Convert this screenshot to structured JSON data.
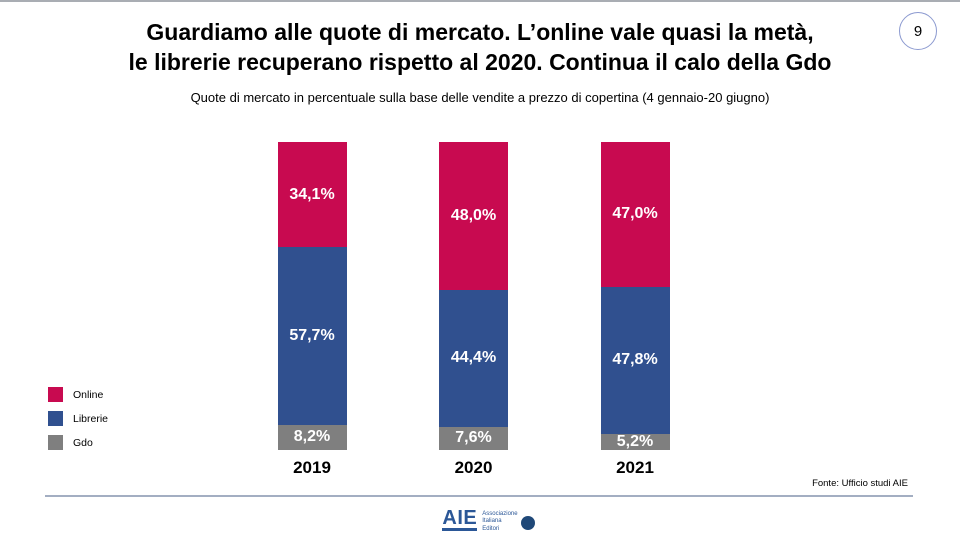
{
  "slide": {
    "page_number": "9",
    "title_line1": "Guardiamo alle quote di mercato. L’online vale quasi la metà,",
    "title_line2": "le librerie recuperano rispetto al 2020. Continua il calo della Gdo",
    "subtitle": "Quote di mercato in percentuale sulla base delle vendite a prezzo di copertina (4 gennaio-20 giugno)",
    "source": "Fonte: Ufficio studi AIE"
  },
  "chart_data": {
    "type": "bar",
    "variant": "stacked-100-percent-column",
    "title": "Quote di mercato in percentuale sulla base delle vendite a prezzo di copertina (4 gennaio-20 giugno)",
    "categories": [
      "2019",
      "2020",
      "2021"
    ],
    "series": [
      {
        "name": "Online",
        "color": "#C80A50",
        "values": [
          34.1,
          48.0,
          47.0
        ],
        "labels": [
          "34,1%",
          "48,0%",
          "47,0%"
        ]
      },
      {
        "name": "Librerie",
        "color": "#30508F",
        "values": [
          57.7,
          44.4,
          47.8
        ],
        "labels": [
          "57,7%",
          "44,4%",
          "47,8%"
        ]
      },
      {
        "name": "Gdo",
        "color": "#7F7F7F",
        "values": [
          8.2,
          7.6,
          5.2
        ],
        "labels": [
          "8,2%",
          "7,6%",
          "5,2%"
        ]
      }
    ],
    "ylim": [
      0,
      100
    ],
    "grid": false,
    "legend_position": "bottom-left",
    "value_label_color": "#FFFFFF"
  },
  "logo": {
    "acronym": "AIE",
    "name_line1": "Associazione",
    "name_line2": "Italiana",
    "name_line3": "Editori"
  }
}
